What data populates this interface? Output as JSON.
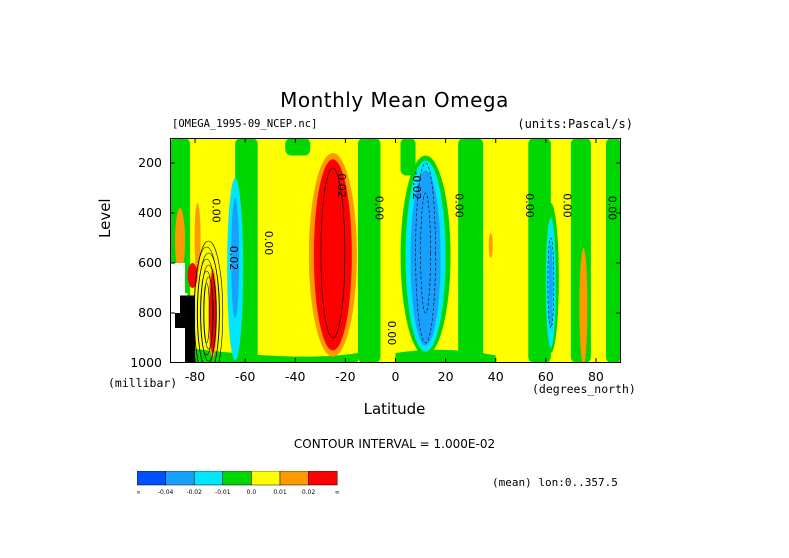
{
  "title": "Monthly Mean Omega",
  "file_label": "[OMEGA_1995-09_NCEP.nc]",
  "units_label": "(units:Pascal/s)",
  "x_axis_title": "Latitude",
  "x_axis_unit": "(degrees_north)",
  "y_axis_title": "Level",
  "y_axis_unit": "(millibar)",
  "contour_interval": "CONTOUR INTERVAL = 1.000E-02",
  "mean_lon": "(mean) lon:0..357.5",
  "colorbar": {
    "labels": [
      "-∞",
      "-0.04",
      "-0.02",
      "-0.01",
      "0.0",
      "0.01",
      "0.02",
      "∞"
    ],
    "colors": [
      "#0050ff",
      "#19a0ff",
      "#00e6ff",
      "#00d700",
      "#ffff00",
      "#ff9900",
      "#ff0000"
    ]
  },
  "chart_data": {
    "type": "heatmap",
    "title": "Monthly Mean Omega",
    "xlabel": "Latitude",
    "ylabel": "Level",
    "xlim": [
      -90,
      90
    ],
    "ylim": [
      1000,
      100
    ],
    "x_ticks": [
      "-80",
      "-60",
      "-40",
      "-20",
      "0",
      "20",
      "40",
      "60",
      "80"
    ],
    "x_tick_values": [
      -80,
      -60,
      -40,
      -20,
      0,
      20,
      40,
      60,
      80
    ],
    "y_ticks": [
      "200",
      "400",
      "600",
      "800",
      "1000"
    ],
    "y_tick_values": [
      200,
      400,
      600,
      800,
      1000
    ],
    "contour_labels": [
      {
        "text": "0.00",
        "lat": -73,
        "lev": 390
      },
      {
        "text": "0.02",
        "lat": -66,
        "lev": 580
      },
      {
        "text": "0.00",
        "lat": -52,
        "lev": 520
      },
      {
        "text": "0.02",
        "lat": -23,
        "lev": 290
      },
      {
        "text": "0.00",
        "lat": -8,
        "lev": 380
      },
      {
        "text": "-0.02",
        "lat": 7,
        "lev": 290
      },
      {
        "text": "0.00",
        "lat": 24,
        "lev": 370
      },
      {
        "text": "0.00",
        "lat": 52,
        "lev": 370
      },
      {
        "text": "0.00",
        "lat": 67,
        "lev": 370
      },
      {
        "text": "0.00",
        "lat": 85,
        "lev": 380
      },
      {
        "text": "0.00",
        "lat": -3,
        "lev": 880
      }
    ],
    "features": [
      {
        "lat": -25,
        "lev_top": 200,
        "lev_bottom": 930,
        "value": 0.03
      },
      {
        "lat": 12,
        "lev_top": 230,
        "lev_bottom": 930,
        "value": -0.03
      },
      {
        "lat": -64,
        "lev_top": 300,
        "lev_bottom": 980,
        "value": -0.02
      },
      {
        "lat": 62,
        "lev_top": 420,
        "lev_bottom": 940,
        "value": -0.02
      },
      {
        "lat": 75,
        "lev_top": 540,
        "lev_bottom": 1000,
        "value": 0.015
      },
      {
        "lat": -86,
        "lev_top": 380,
        "lev_bottom": 600,
        "value": 0.015
      },
      {
        "lat": -77,
        "lev_top": 600,
        "lev_bottom": 1000,
        "value": 0.04
      }
    ]
  }
}
